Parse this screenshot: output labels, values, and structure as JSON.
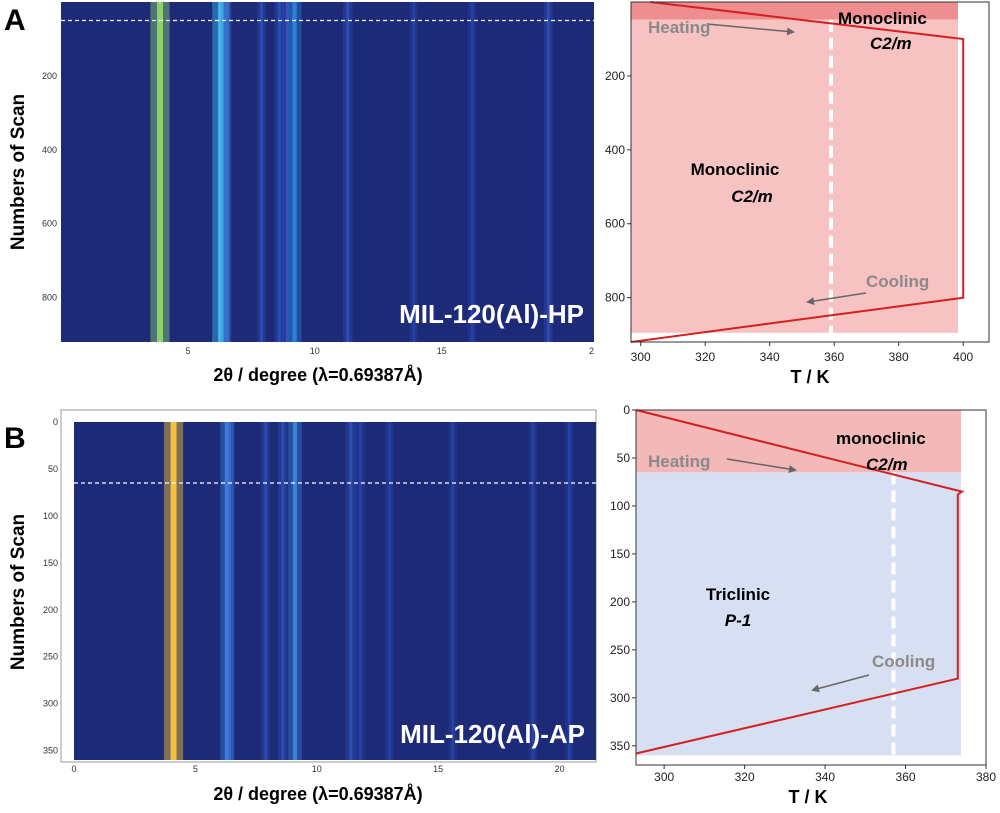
{
  "chart_data": [
    {
      "panel": "A",
      "type": "heatmap",
      "sample_label": "MIL-120(Al)-HP",
      "xlabel": "2θ / degree (λ=0.69387Å)",
      "ylabel": "Numbers of Scan",
      "xlim": [
        0,
        21
      ],
      "ylim": [
        0,
        920
      ],
      "x_ticks": [
        "5",
        "10",
        "15",
        "2"
      ],
      "y_ticks": [
        "200",
        "400",
        "600",
        "800"
      ],
      "dashed_line_scan": 50,
      "peaks": [
        {
          "two_theta": 3.9,
          "intensity": 1.0,
          "color": "#8fd16a"
        },
        {
          "two_theta": 6.3,
          "intensity": 0.85,
          "color": "#45c3ef"
        },
        {
          "two_theta": 6.5,
          "intensity": 0.35,
          "color": "#3a6fd8"
        },
        {
          "two_theta": 7.9,
          "intensity": 0.2,
          "color": "#3458c8"
        },
        {
          "two_theta": 8.6,
          "intensity": 0.25,
          "color": "#3458c8"
        },
        {
          "two_theta": 8.9,
          "intensity": 0.25,
          "color": "#3458c8"
        },
        {
          "two_theta": 9.2,
          "intensity": 0.6,
          "color": "#2f8be0"
        },
        {
          "two_theta": 11.3,
          "intensity": 0.25,
          "color": "#3458c8"
        },
        {
          "two_theta": 13.9,
          "intensity": 0.15,
          "color": "#2e4bb8"
        },
        {
          "two_theta": 16.2,
          "intensity": 0.15,
          "color": "#2e4bb8"
        },
        {
          "two_theta": 19.2,
          "intensity": 0.2,
          "color": "#3458c8"
        }
      ]
    },
    {
      "panel": "A",
      "type": "line",
      "xlabel": "T / K",
      "xlim": [
        297,
        408
      ],
      "ylim": [
        920,
        0
      ],
      "x_ticks": [
        300,
        320,
        340,
        360,
        380,
        400
      ],
      "y_ticks": [
        200,
        400,
        600,
        800
      ],
      "annotations": {
        "heating": "Heating",
        "cooling": "Cooling",
        "phase_top": "Monoclinic",
        "phase_top_group": "C2/m",
        "phase_main": "Monoclinic",
        "phase_main_group": "C2/m"
      },
      "regions": [
        {
          "phase": "Monoclinic C2/m",
          "scan_from": 0,
          "scan_to": 48,
          "color": "#ef8e8e"
        },
        {
          "phase": "Monoclinic C2/m",
          "scan_from": 48,
          "scan_to": 895,
          "color": "#f6c2c2"
        }
      ],
      "transition_T": 359,
      "series": [
        {
          "x": [
            303,
            400,
            400,
            297
          ],
          "y": [
            0,
            100,
            800,
            920
          ],
          "color": "#d62020"
        }
      ]
    },
    {
      "panel": "B",
      "type": "heatmap",
      "sample_label": "MIL-120(Al)-AP",
      "xlabel": "2θ / degree (λ=0.69387Å)",
      "ylabel": "Numbers of Scan",
      "xlim": [
        0,
        21.5
      ],
      "ylim": [
        0,
        360
      ],
      "x_ticks": [
        "0",
        "5",
        "10",
        "15",
        "20"
      ],
      "y_ticks": [
        "0",
        "50",
        "100",
        "150",
        "200",
        "250",
        "300",
        "350"
      ],
      "dashed_line_scan": 65,
      "peaks": [
        {
          "two_theta": 4.1,
          "intensity": 1.0,
          "color": "#f2c33a"
        },
        {
          "two_theta": 6.3,
          "intensity": 0.55,
          "color": "#3f90e6"
        },
        {
          "two_theta": 6.4,
          "intensity": 0.3,
          "color": "#3a6fd8"
        },
        {
          "two_theta": 7.9,
          "intensity": 0.2,
          "color": "#3458c8"
        },
        {
          "two_theta": 8.6,
          "intensity": 0.25,
          "color": "#3458c8"
        },
        {
          "two_theta": 9.1,
          "intensity": 0.55,
          "color": "#3f90e6"
        },
        {
          "two_theta": 11.4,
          "intensity": 0.3,
          "color": "#3458c8"
        },
        {
          "two_theta": 11.8,
          "intensity": 0.2,
          "color": "#2e4bb8"
        },
        {
          "two_theta": 13.0,
          "intensity": 0.15,
          "color": "#2e4bb8"
        },
        {
          "two_theta": 15.6,
          "intensity": 0.15,
          "color": "#2e4bb8"
        },
        {
          "two_theta": 18.9,
          "intensity": 0.15,
          "color": "#2e4bb8"
        },
        {
          "two_theta": 20.4,
          "intensity": 0.15,
          "color": "#2e4bb8"
        }
      ]
    },
    {
      "panel": "B",
      "type": "line",
      "xlabel": "T / K",
      "xlim": [
        293,
        380
      ],
      "ylim": [
        370,
        0
      ],
      "x_ticks": [
        300,
        320,
        340,
        360,
        380
      ],
      "y_ticks": [
        0,
        50,
        100,
        150,
        200,
        250,
        300,
        350
      ],
      "annotations": {
        "heating": "Heating",
        "cooling": "Cooling",
        "phase_top": "monoclinic",
        "phase_top_group": "C2/m",
        "phase_main": "Triclinic",
        "phase_main_group": "P-1"
      },
      "regions": [
        {
          "phase": "monoclinic C2/m",
          "scan_from": 0,
          "scan_to": 65,
          "color": "#f3b8b8"
        },
        {
          "phase": "Triclinic P-1",
          "scan_from": 65,
          "scan_to": 360,
          "color": "#d7e0f2"
        }
      ],
      "transition_T": 357,
      "series": [
        {
          "x": [
            293,
            374,
            373,
            373,
            293
          ],
          "y": [
            0,
            85,
            88,
            280,
            358
          ],
          "color": "#d62020"
        }
      ]
    }
  ]
}
